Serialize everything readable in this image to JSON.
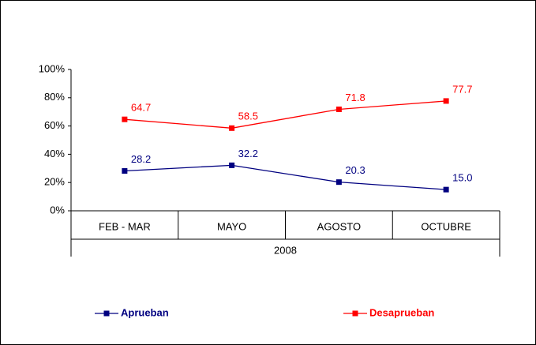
{
  "chart_data": {
    "type": "line",
    "categories": [
      "FEB - MAR",
      "MAYO",
      "AGOSTO",
      "OCTUBRE"
    ],
    "category_group": "2008",
    "series": [
      {
        "name": "Aprueban",
        "color": "#000080",
        "values": [
          28.2,
          32.2,
          20.3,
          15.0
        ],
        "value_labels": [
          "28.2",
          "32.2",
          "20.3",
          "15.0"
        ]
      },
      {
        "name": "Desaprueban",
        "color": "#ff0000",
        "values": [
          64.7,
          58.5,
          71.8,
          77.7
        ],
        "value_labels": [
          "64.7",
          "58.5",
          "71.8",
          "77.7"
        ]
      }
    ],
    "ylim": [
      0,
      100
    ],
    "yticks": [
      {
        "value": 0,
        "label": "0%"
      },
      {
        "value": 20,
        "label": "20%"
      },
      {
        "value": 40,
        "label": "40%"
      },
      {
        "value": 60,
        "label": "60%"
      },
      {
        "value": 80,
        "label": "80%"
      },
      {
        "value": 100,
        "label": "100%"
      }
    ],
    "legend": "bottom"
  }
}
